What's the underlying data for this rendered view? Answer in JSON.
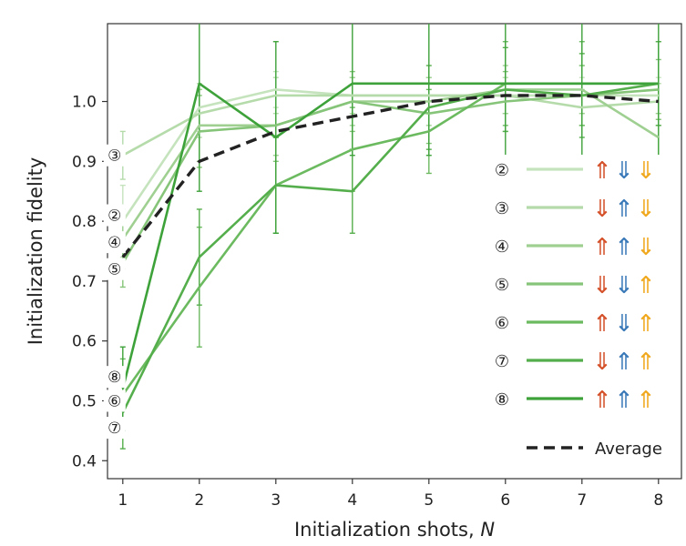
{
  "chart_data": {
    "type": "line",
    "title": "",
    "xlabel": "Initialization shots, ",
    "xlabel_var": "N",
    "ylabel": "Initialization fidelity",
    "x": [
      1,
      2,
      3,
      4,
      5,
      6,
      7,
      8
    ],
    "xlim": [
      0.8,
      8.3
    ],
    "ylim": [
      0.37,
      1.13
    ],
    "xticks": [
      "1",
      "2",
      "3",
      "4",
      "5",
      "6",
      "7",
      "8"
    ],
    "yticks": [
      "0.4",
      "0.5",
      "0.6",
      "0.7",
      "0.8",
      "0.9",
      "1.0"
    ],
    "ytick_values": [
      0.4,
      0.5,
      0.6,
      0.7,
      0.8,
      0.9,
      1.0
    ],
    "grid": false,
    "legend_position": "right",
    "series": [
      {
        "name": "②",
        "states": [
          "up",
          "down",
          "down"
        ],
        "color": "#c5e3bd",
        "values": [
          0.8,
          0.99,
          1.02,
          1.01,
          1.01,
          1.01,
          1.01,
          1.01
        ],
        "err": [
          0.06,
          0.04,
          0.03,
          0.03,
          0.03,
          0.03,
          0.03,
          0.03
        ]
      },
      {
        "name": "③",
        "states": [
          "down",
          "up",
          "down"
        ],
        "color": "#b5dbab",
        "values": [
          0.91,
          0.98,
          1.01,
          1.01,
          1.01,
          1.01,
          0.99,
          1.0
        ],
        "err": [
          0.04,
          0.04,
          0.03,
          0.03,
          0.03,
          0.03,
          0.03,
          0.03
        ]
      },
      {
        "name": "④",
        "states": [
          "up",
          "up",
          "down"
        ],
        "color": "#9fd092",
        "values": [
          0.77,
          0.96,
          0.96,
          1.0,
          1.0,
          1.02,
          1.02,
          0.94
        ],
        "err": [
          0.05,
          0.06,
          0.05,
          0.04,
          0.04,
          0.04,
          0.04,
          0.04
        ]
      },
      {
        "name": "⑤",
        "states": [
          "down",
          "down",
          "up"
        ],
        "color": "#86c579",
        "values": [
          0.73,
          0.95,
          0.96,
          1.0,
          0.98,
          1.0,
          1.01,
          1.02
        ],
        "err": [
          0.04,
          0.06,
          0.06,
          0.05,
          0.05,
          0.05,
          0.05,
          0.05
        ]
      },
      {
        "name": "⑥",
        "states": [
          "up",
          "down",
          "up"
        ],
        "color": "#6cba60",
        "values": [
          0.51,
          0.69,
          0.86,
          0.92,
          0.95,
          1.03,
          1.03,
          1.03
        ],
        "err": [
          0.06,
          0.1,
          0.08,
          0.07,
          0.07,
          0.07,
          0.07,
          0.07
        ]
      },
      {
        "name": "⑦",
        "states": [
          "down",
          "up",
          "up"
        ],
        "color": "#55ae4c",
        "values": [
          0.48,
          0.74,
          0.86,
          0.85,
          0.99,
          1.02,
          1.01,
          1.03
        ],
        "err": [
          0.06,
          0.08,
          0.08,
          0.07,
          0.07,
          0.07,
          0.07,
          0.07
        ]
      },
      {
        "name": "⑧",
        "states": [
          "up",
          "up",
          "up"
        ],
        "color": "#3ea23a",
        "values": [
          0.52,
          1.03,
          0.94,
          1.03,
          1.03,
          1.03,
          1.03,
          1.03
        ],
        "err": [
          0.07,
          0.18,
          0.16,
          0.12,
          0.12,
          0.12,
          0.12,
          0.12
        ]
      },
      {
        "name": "Average",
        "color": "#222222",
        "dashed": true,
        "values": [
          0.74,
          0.9,
          0.95,
          0.975,
          1.0,
          1.01,
          1.01,
          1.0
        ]
      }
    ],
    "point_labels": [
      {
        "text": "③",
        "x": 1,
        "y": 0.91
      },
      {
        "text": "②",
        "x": 1,
        "y": 0.81
      },
      {
        "text": "④",
        "x": 1,
        "y": 0.765
      },
      {
        "text": "⑤",
        "x": 1,
        "y": 0.72
      },
      {
        "text": "⑧",
        "x": 1,
        "y": 0.54
      },
      {
        "text": "⑥",
        "x": 1,
        "y": 0.5
      },
      {
        "text": "⑦",
        "x": 1,
        "y": 0.455
      }
    ],
    "state_colors": [
      "#d4512a",
      "#3a79b8",
      "#f0a81e"
    ]
  }
}
